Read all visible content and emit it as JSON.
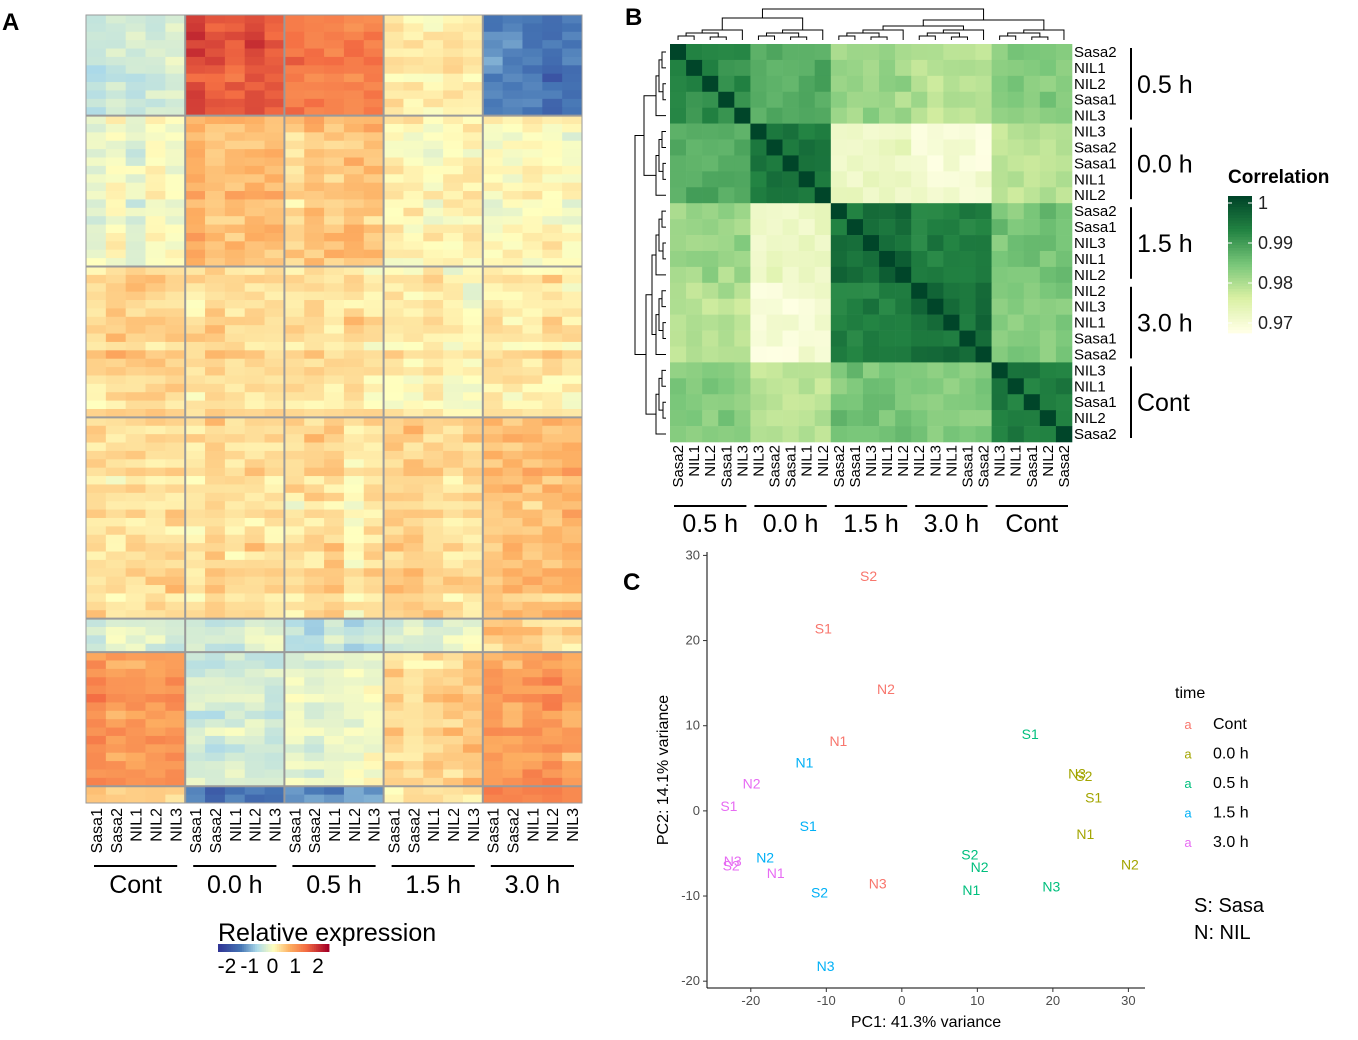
{
  "panels": {
    "a": {
      "letter": "A"
    },
    "b": {
      "letter": "B"
    },
    "c": {
      "letter": "C"
    }
  },
  "chart_data": [
    {
      "id": "expression-heatmap",
      "type": "heatmap",
      "title": "",
      "columns": [
        "Sasa1",
        "Sasa2",
        "NIL1",
        "NIL2",
        "NIL3",
        "Sasa1",
        "Sasa2",
        "NIL1",
        "NIL2",
        "NIL3",
        "Sasa1",
        "Sasa2",
        "NIL1",
        "NIL2",
        "NIL3",
        "Sasa1",
        "Sasa2",
        "NIL1",
        "NIL2",
        "NIL3",
        "Sasa1",
        "Sasa2",
        "NIL1",
        "NIL2",
        "NIL3"
      ],
      "groups": [
        "Cont",
        "0.0 h",
        "0.5 h",
        "1.5 h",
        "3.0 h"
      ],
      "cluster_bands": [
        {
          "name": "band1",
          "rows": 12,
          "group_means": [
            -0.35,
            1.4,
            1.0,
            0.15,
            -1.2
          ]
        },
        {
          "name": "band2",
          "rows": 18,
          "group_means": [
            -0.1,
            0.5,
            0.4,
            0.05,
            0.0
          ]
        },
        {
          "name": "band3",
          "rows": 18,
          "group_means": [
            0.35,
            0.25,
            0.15,
            0.1,
            0.2
          ]
        },
        {
          "name": "band4",
          "rows": 24,
          "group_means": [
            0.2,
            0.2,
            0.2,
            0.3,
            0.45
          ]
        },
        {
          "name": "band5",
          "rows": 4,
          "group_means": [
            -0.4,
            -0.3,
            -0.5,
            -0.3,
            0.2
          ]
        },
        {
          "name": "band6",
          "rows": 16,
          "group_means": [
            0.8,
            -0.35,
            -0.2,
            0.35,
            0.75
          ]
        },
        {
          "name": "band7",
          "rows": 2,
          "group_means": [
            0.3,
            -1.3,
            -1.0,
            0.2,
            1.0
          ]
        }
      ],
      "legend": {
        "title": "Relative expression",
        "ticks": [
          "-2",
          "-1",
          "0",
          "1",
          "2"
        ],
        "range": [
          -2,
          2
        ]
      }
    },
    {
      "id": "correlation-heatmap",
      "type": "heatmap",
      "title": "",
      "samples": [
        "Sasa2",
        "NIL1",
        "NIL2",
        "Sasa1",
        "NIL3",
        "NIL3",
        "Sasa2",
        "Sasa1",
        "NIL1",
        "NIL2",
        "Sasa2",
        "Sasa1",
        "NIL3",
        "NIL1",
        "NIL2",
        "NIL2",
        "NIL3",
        "NIL1",
        "Sasa1",
        "Sasa2",
        "NIL3",
        "NIL1",
        "Sasa1",
        "NIL2",
        "Sasa2"
      ],
      "sample_groups": [
        0,
        0,
        0,
        0,
        0,
        1,
        1,
        1,
        1,
        1,
        2,
        2,
        2,
        2,
        2,
        3,
        3,
        3,
        3,
        3,
        4,
        4,
        4,
        4,
        4
      ],
      "groups": [
        "0.5 h",
        "0.0 h",
        "1.5 h",
        "3.0 h",
        "Cont"
      ],
      "group_correlation": [
        [
          0.992,
          0.988,
          0.982,
          0.98,
          0.984
        ],
        [
          0.988,
          0.994,
          0.974,
          0.972,
          0.98
        ],
        [
          0.982,
          0.974,
          0.995,
          0.993,
          0.985
        ],
        [
          0.98,
          0.972,
          0.993,
          0.995,
          0.984
        ],
        [
          0.984,
          0.98,
          0.985,
          0.984,
          0.993
        ]
      ],
      "legend": {
        "title": "Correlation",
        "ticks": [
          "1",
          "0.99",
          "0.98",
          "0.97"
        ],
        "range": [
          0.97,
          1
        ]
      }
    },
    {
      "id": "pca-scatter",
      "type": "scatter",
      "title": "",
      "xlabel": "PC1: 41.3% variance",
      "ylabel": "PC2: 14.1% variance",
      "xlim": [
        -25.8,
        32.2
      ],
      "ylim": [
        -20.8,
        30.4
      ],
      "xticks": [
        "-20",
        "-10",
        "0",
        "10",
        "20",
        "30"
      ],
      "yticks": [
        "-20",
        "-10",
        "0",
        "10",
        "20",
        "30"
      ],
      "legend": {
        "title": "time",
        "marker": "a",
        "entries": [
          {
            "name": "Cont",
            "color": "#f8766d"
          },
          {
            "name": "0.0 h",
            "color": "#a3a500"
          },
          {
            "name": "0.5 h",
            "color": "#00bf7d"
          },
          {
            "name": "1.5 h",
            "color": "#00b0f6"
          },
          {
            "name": "3.0 h",
            "color": "#e76bf3"
          }
        ]
      },
      "notes": [
        "S: Sasa",
        "N: NIL"
      ],
      "points": [
        {
          "label": "S2",
          "group": "Cont",
          "x": -4.4,
          "y": 27.6
        },
        {
          "label": "S1",
          "group": "Cont",
          "x": -10.4,
          "y": 21.4
        },
        {
          "label": "N2",
          "group": "Cont",
          "x": -2.1,
          "y": 14.3
        },
        {
          "label": "N1",
          "group": "Cont",
          "x": -8.4,
          "y": 8.2
        },
        {
          "label": "N3",
          "group": "Cont",
          "x": -3.2,
          "y": -8.5
        },
        {
          "label": "N3",
          "group": "0.0 h",
          "x": 23.2,
          "y": 4.4
        },
        {
          "label": "S2",
          "group": "0.0 h",
          "x": 24.1,
          "y": 4.1
        },
        {
          "label": "S1",
          "group": "0.0 h",
          "x": 25.4,
          "y": 1.6
        },
        {
          "label": "N1",
          "group": "0.0 h",
          "x": 24.3,
          "y": -2.7
        },
        {
          "label": "N2",
          "group": "0.0 h",
          "x": 30.2,
          "y": -6.3
        },
        {
          "label": "S1",
          "group": "0.5 h",
          "x": 17.0,
          "y": 9.0
        },
        {
          "label": "S2",
          "group": "0.5 h",
          "x": 9.0,
          "y": -5.1
        },
        {
          "label": "N2",
          "group": "0.5 h",
          "x": 10.3,
          "y": -6.6
        },
        {
          "label": "N1",
          "group": "0.5 h",
          "x": 9.2,
          "y": -9.3
        },
        {
          "label": "N3",
          "group": "0.5 h",
          "x": 19.8,
          "y": -8.9
        },
        {
          "label": "N1",
          "group": "1.5 h",
          "x": -12.9,
          "y": 5.7
        },
        {
          "label": "S1",
          "group": "1.5 h",
          "x": -12.4,
          "y": -1.8
        },
        {
          "label": "N2",
          "group": "1.5 h",
          "x": -18.1,
          "y": -5.5
        },
        {
          "label": "S2",
          "group": "1.5 h",
          "x": -10.9,
          "y": -9.6
        },
        {
          "label": "N3",
          "group": "1.5 h",
          "x": -10.1,
          "y": -18.2
        },
        {
          "label": "N2",
          "group": "3.0 h",
          "x": -19.9,
          "y": 3.2
        },
        {
          "label": "S1",
          "group": "3.0 h",
          "x": -22.9,
          "y": 0.6
        },
        {
          "label": "N3",
          "group": "3.0 h",
          "x": -22.4,
          "y": -5.9
        },
        {
          "label": "S2",
          "group": "3.0 h",
          "x": -22.6,
          "y": -6.4
        },
        {
          "label": "N1",
          "group": "3.0 h",
          "x": -16.7,
          "y": -7.3
        }
      ]
    }
  ]
}
